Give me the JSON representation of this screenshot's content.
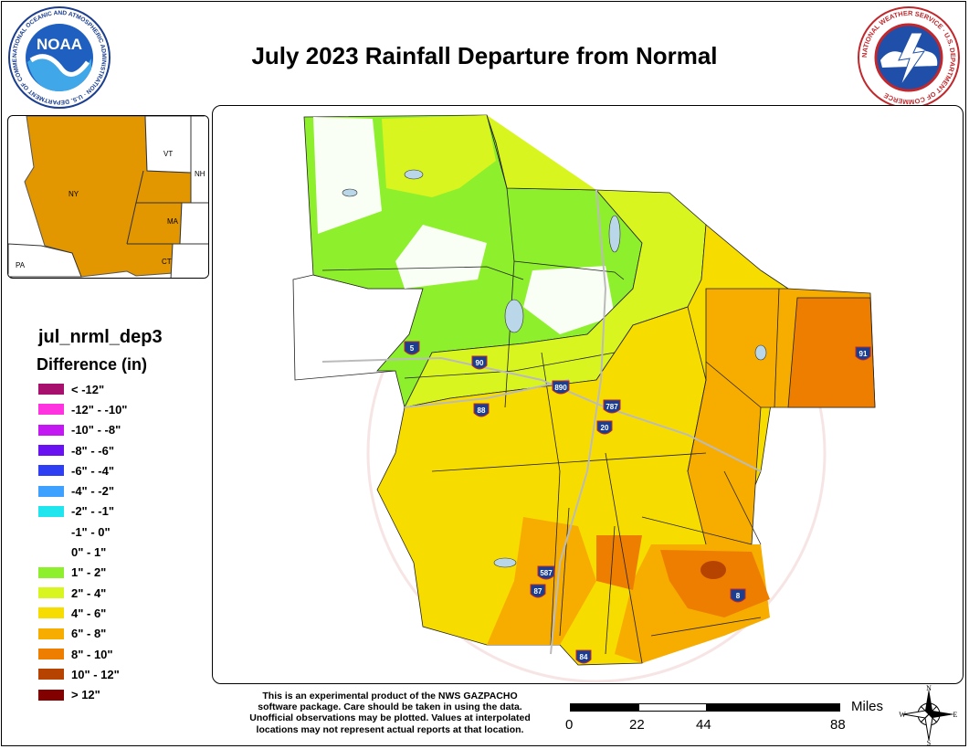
{
  "title": "July 2023 Rainfall Departure from Normal",
  "logos": {
    "noaa": {
      "center_text": "NOAA",
      "ring_text": "NATIONAL OCEANIC AND ATMOSPHERIC ADMINISTRATION · U.S. DEPARTMENT OF COMMERCE"
    },
    "nws": {
      "ring_text": "NATIONAL WEATHER SERVICE · U.S. DEPARTMENT OF COMMERCE"
    }
  },
  "inset_map": {
    "labels": {
      "ny": "NY",
      "vt": "VT",
      "nh": "NH",
      "ma": "MA",
      "ct": "CT",
      "pa": "PA"
    },
    "highlight_color": "#e29600"
  },
  "legend": {
    "title": "jul_nrml_dep3",
    "subtitle": "Difference (in)",
    "items": [
      {
        "label": "< -12\"",
        "color": "#a8106e"
      },
      {
        "label": "-12\" - -10\"",
        "color": "#ff33e0"
      },
      {
        "label": "-10\" - -8\"",
        "color": "#c418f2"
      },
      {
        "label": "-8\" - -6\"",
        "color": "#6a11f2"
      },
      {
        "label": "-6\" - -4\"",
        "color": "#2e3ef2"
      },
      {
        "label": "-4\" - -2\"",
        "color": "#3ea1ff"
      },
      {
        "label": "-2\" - -1\"",
        "color": "#20e5ee"
      },
      {
        "label": "-1\" - 0\"",
        "color": "#ffffff"
      },
      {
        "label": "0\" - 1\"",
        "color": "#ffffff"
      },
      {
        "label": "1\" - 2\"",
        "color": "#8eef2c"
      },
      {
        "label": "2\" - 4\"",
        "color": "#d9f51f"
      },
      {
        "label": "4\" - 6\"",
        "color": "#f7dc00"
      },
      {
        "label": "6\" - 8\"",
        "color": "#f7ac00"
      },
      {
        "label": "8\" - 10\"",
        "color": "#ee7e00"
      },
      {
        "label": "10\" - 12\"",
        "color": "#b74300"
      },
      {
        "label": "> 12\"",
        "color": "#820000"
      }
    ]
  },
  "highways": [
    {
      "label": "5"
    },
    {
      "label": "90"
    },
    {
      "label": "890"
    },
    {
      "label": "88"
    },
    {
      "label": "787"
    },
    {
      "label": "20"
    },
    {
      "label": "91"
    },
    {
      "label": "587"
    },
    {
      "label": "87"
    },
    {
      "label": "8"
    },
    {
      "label": "84"
    }
  ],
  "disclaimer": [
    "This is an experimental product of the NWS GAZPACHO",
    "software package. Care should be taken in using the data.",
    "Unofficial observations may be plotted. Values at interpolated",
    "locations may not represent actual reports at that location."
  ],
  "scale": {
    "unit": "Miles",
    "ticks": [
      "0",
      "22",
      "44",
      "88"
    ]
  },
  "compass": {
    "n": "N",
    "s": "S",
    "e": "E",
    "w": "W"
  },
  "watermark": "NATIONAL WEATHER SERVICE · U.S. DEPARTMENT OF COMMERCE"
}
